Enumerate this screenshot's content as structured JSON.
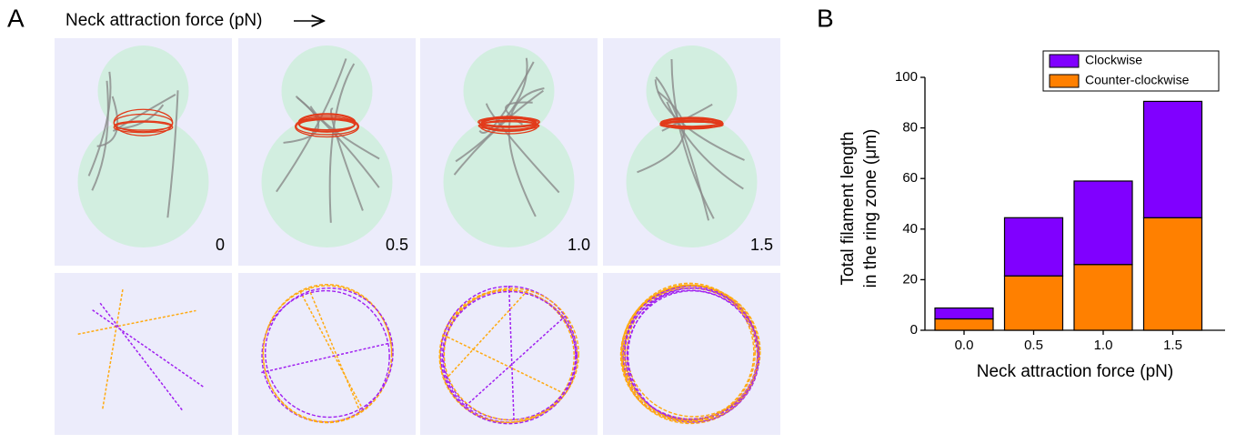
{
  "panel_labels": [
    "A",
    "B"
  ],
  "panel_a": {
    "title": "Neck attraction force (pN)",
    "tile_labels": [
      "0",
      "0.5",
      "1.0",
      "1.5"
    ]
  },
  "chart_data": {
    "type": "stacked_bar",
    "categories": [
      "0.0",
      "0.5",
      "1.0",
      "1.5"
    ],
    "series": [
      {
        "name": "Counter-clockwise",
        "color": "#ff8000",
        "values": [
          4.5,
          21.5,
          26,
          44.5
        ]
      },
      {
        "name": "Clockwise",
        "color": "#8000ff",
        "values": [
          4.3,
          23,
          33,
          46
        ]
      }
    ],
    "xlabel": "Neck attraction force (pN)",
    "ylabel": [
      "Total filament length",
      "in the ring zone (μm)"
    ],
    "ylim": [
      0,
      100
    ],
    "yticks": [
      0,
      20,
      40,
      60,
      80,
      100
    ],
    "legend": "top-right",
    "grid": false
  }
}
